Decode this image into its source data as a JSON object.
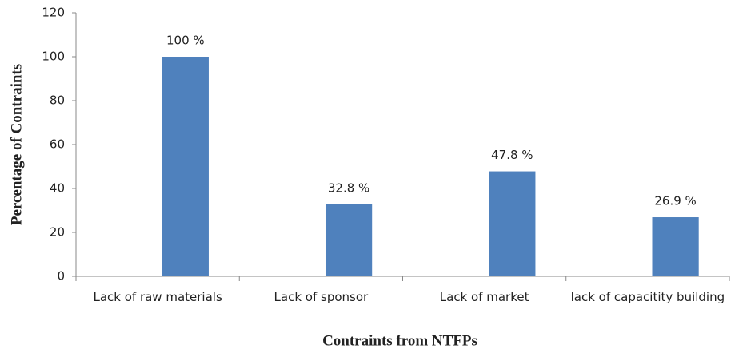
{
  "chart_data": {
    "type": "bar",
    "categories": [
      "Lack of raw materials",
      "Lack of sponsor",
      "Lack of market",
      "lack of capacitity building"
    ],
    "values": [
      100,
      32.8,
      47.8,
      26.9
    ],
    "value_labels": [
      "100  %",
      "32.8  %",
      "47.8 %",
      "26.9  %"
    ],
    "color": "#4f81bd",
    "ylim": [
      0,
      120
    ],
    "yticks": [
      0,
      20,
      40,
      60,
      80,
      100,
      120
    ],
    "x_label": "Contraints from NTFPs",
    "y_label": "Percentage of Contraints",
    "grid": false
  }
}
